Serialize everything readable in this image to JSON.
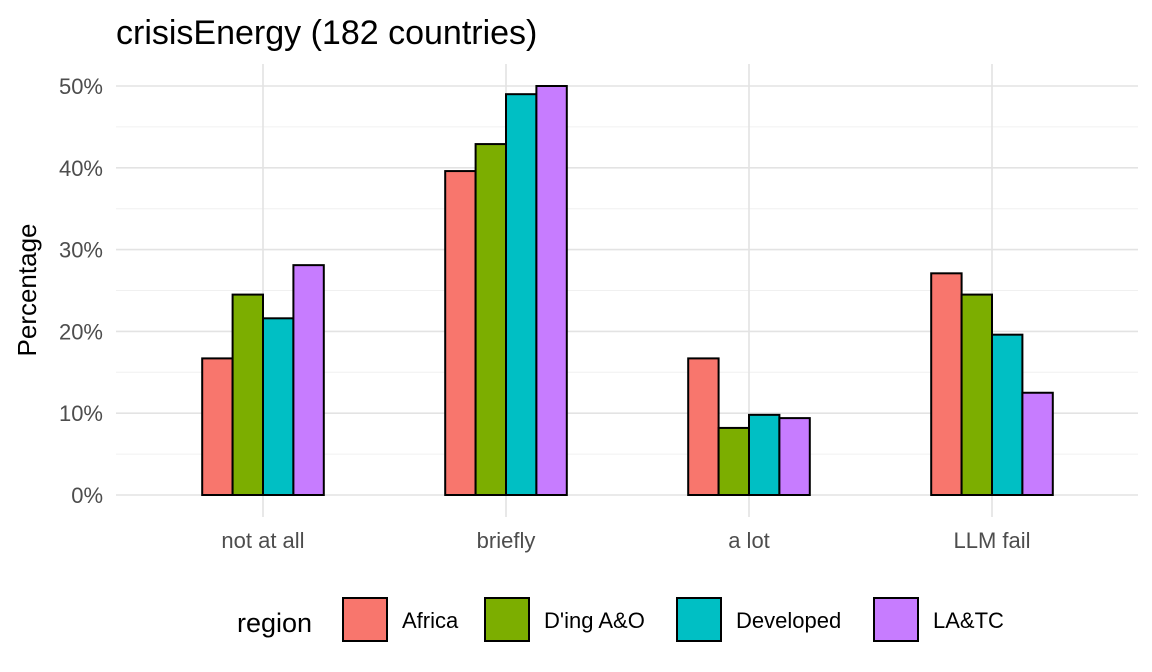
{
  "chart_data": {
    "type": "bar",
    "title": "crisisEnergy (182 countries)",
    "xlabel": "",
    "ylabel": "Percentage",
    "categories": [
      "not at all",
      "briefly",
      "a lot",
      "LLM fail"
    ],
    "ylim": [
      0,
      50
    ],
    "yticks": [
      0,
      10,
      20,
      30,
      40,
      50
    ],
    "ytick_labels": [
      "0%",
      "10%",
      "20%",
      "30%",
      "40%",
      "50%"
    ],
    "grid": true,
    "legend": {
      "title": "region",
      "position": "bottom"
    },
    "series": [
      {
        "name": "Africa",
        "color": "#F8766D",
        "values": [
          16.7,
          39.6,
          16.7,
          27.1
        ]
      },
      {
        "name": "D'ing A&O",
        "color": "#7CAE00",
        "values": [
          24.5,
          42.9,
          8.2,
          24.5
        ]
      },
      {
        "name": "Developed",
        "color": "#00BFC4",
        "values": [
          21.6,
          49.0,
          9.8,
          19.6
        ]
      },
      {
        "name": "LA&TC",
        "color": "#C77CFF",
        "values": [
          28.1,
          50.0,
          9.4,
          12.5
        ]
      }
    ]
  }
}
